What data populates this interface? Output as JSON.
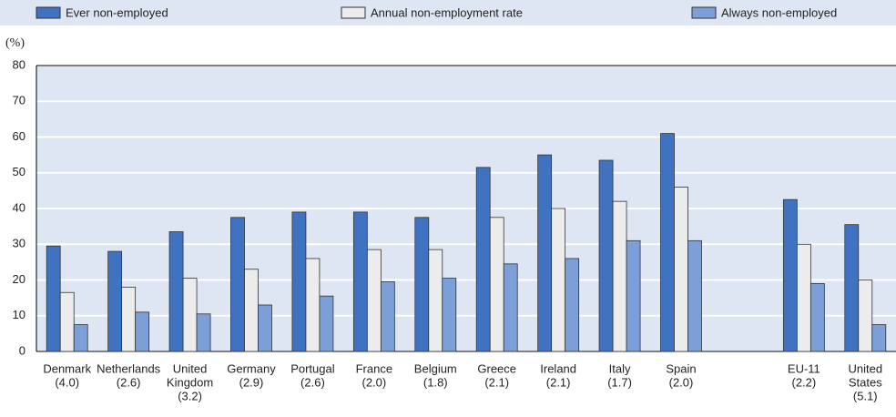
{
  "chart_data": {
    "type": "bar",
    "y_label": "(%)",
    "categories": [
      [
        "Denmark",
        "(4.0)"
      ],
      [
        "Netherlands",
        "(2.6)"
      ],
      [
        "United",
        "Kingdom",
        "(3.2)"
      ],
      [
        "Germany",
        "(2.9)"
      ],
      [
        "Portugal",
        "(2.6)"
      ],
      [
        "France",
        "(2.0)"
      ],
      [
        "Belgium",
        "(1.8)"
      ],
      [
        "Greece",
        "(2.1)"
      ],
      [
        "Ireland",
        "(2.1)"
      ],
      [
        "Italy",
        "(1.7)"
      ],
      [
        "Spain",
        "(2.0)"
      ],
      null,
      [
        "EU-11",
        "(2.2)"
      ],
      [
        "United",
        "States",
        "(5.1)"
      ]
    ],
    "series": [
      {
        "name": "Ever non-employed",
        "color": "#3f72c0",
        "values": [
          29.5,
          28,
          33.5,
          37.5,
          39,
          39,
          37.5,
          51.5,
          55,
          53.5,
          61,
          null,
          42.5,
          35.5
        ]
      },
      {
        "name": "Annual non-employment rate",
        "color": "#ececec",
        "values": [
          16.5,
          18,
          20.5,
          23,
          26,
          28.5,
          28.5,
          37.5,
          40,
          42,
          46,
          null,
          30,
          20
        ]
      },
      {
        "name": "Always non-employed",
        "color": "#7c9fd8",
        "values": [
          7.5,
          11,
          10.5,
          13,
          15.5,
          19.5,
          20.5,
          24.5,
          26,
          31,
          31,
          null,
          19,
          7.5
        ]
      }
    ],
    "ylim": [
      0,
      80
    ],
    "yticks": [
      0,
      10,
      20,
      30,
      40,
      50,
      60,
      70,
      80
    ],
    "grid": true,
    "legend": "top"
  }
}
